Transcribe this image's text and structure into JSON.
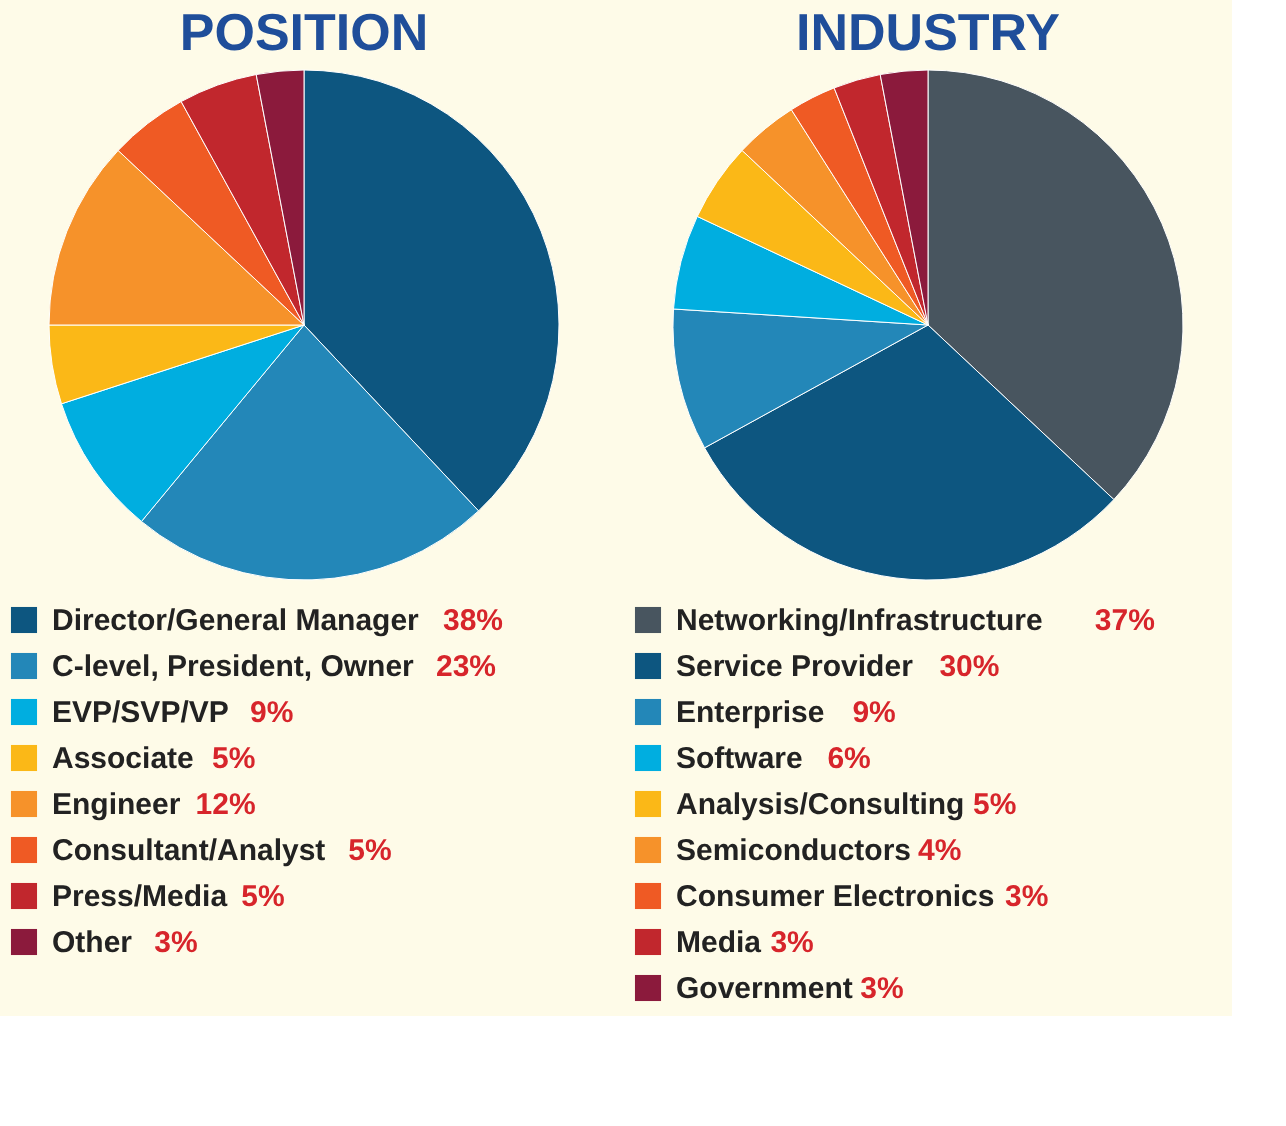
{
  "chart_data": [
    {
      "type": "pie",
      "title": "POSITION",
      "legend": "bottom",
      "categories": [
        "Director/General Manager",
        "C-level, President, Owner",
        "EVP/SVP/VP",
        "Associate",
        "Engineer",
        "Consultant/Analyst",
        "Press/Media",
        "Other"
      ],
      "values": [
        38,
        23,
        9,
        5,
        12,
        5,
        5,
        3
      ],
      "value_labels": [
        "38%",
        "23%",
        "9%",
        "5%",
        "12%",
        "5%",
        "5%",
        "3%"
      ],
      "colors": [
        "#0d5680",
        "#2387b8",
        "#00aee0",
        "#fbb817",
        "#f6922a",
        "#ef5a24",
        "#c1272d",
        "#8b1a3c"
      ]
    },
    {
      "type": "pie",
      "title": "INDUSTRY",
      "legend": "bottom",
      "categories": [
        "Networking/Infrastructure",
        "Service Provider",
        "Enterprise",
        "Software",
        "Analysis/Consulting",
        "Semiconductors",
        "Consumer Electronics",
        "Media",
        "Government"
      ],
      "values": [
        37,
        30,
        9,
        6,
        5,
        4,
        3,
        3,
        3
      ],
      "value_labels": [
        "37%",
        "30%",
        "9%",
        "6%",
        "5%",
        "4%",
        "3%",
        "3%",
        "3%"
      ],
      "colors": [
        "#48555f",
        "#0d5680",
        "#2387b8",
        "#00aee0",
        "#fbb817",
        "#f6922a",
        "#ef5a24",
        "#c1272d",
        "#8b1a3c"
      ]
    }
  ]
}
